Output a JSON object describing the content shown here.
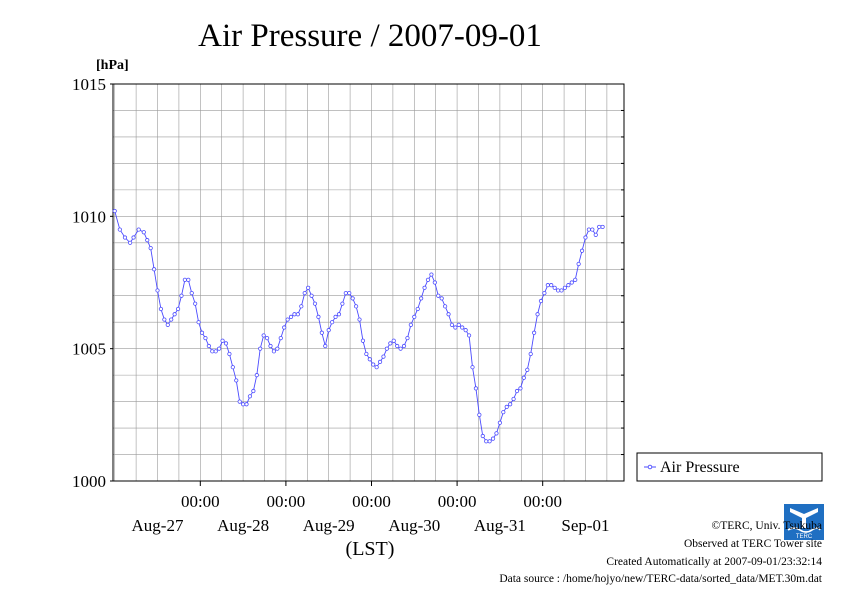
{
  "chart_data": {
    "type": "line",
    "title": "Air Pressure / 2007-09-01",
    "ylabel": "[hPa]",
    "xlabel": "(LST)",
    "ylim": [
      1000,
      1015
    ],
    "yticks": [
      "1000",
      "1005",
      "1010",
      "1015"
    ],
    "xticks": [
      {
        "time": "00:00",
        "date": "Aug-27"
      },
      {
        "time": "00:00",
        "date": "Aug-28"
      },
      {
        "time": "00:00",
        "date": "Aug-29"
      },
      {
        "time": "00:00",
        "date": "Aug-30"
      },
      {
        "time": "00:00",
        "date": "Aug-31"
      },
      {
        "time": "00:00",
        "date": "Sep-01"
      }
    ],
    "x_unit": "days since 2007-08-26 00:00",
    "xlim": [
      -0.02,
      5.95
    ],
    "grid": true,
    "legend_position": "right",
    "series": [
      {
        "name": "Air Pressure",
        "color": "#4b4bff",
        "points": [
          [
            0.0,
            1010.2
          ],
          [
            0.06,
            1009.5
          ],
          [
            0.12,
            1009.2
          ],
          [
            0.18,
            1009.0
          ],
          [
            0.22,
            1009.2
          ],
          [
            0.28,
            1009.5
          ],
          [
            0.34,
            1009.4
          ],
          [
            0.38,
            1009.1
          ],
          [
            0.42,
            1008.8
          ],
          [
            0.46,
            1008.0
          ],
          [
            0.5,
            1007.2
          ],
          [
            0.54,
            1006.5
          ],
          [
            0.58,
            1006.1
          ],
          [
            0.62,
            1005.9
          ],
          [
            0.66,
            1006.1
          ],
          [
            0.7,
            1006.3
          ],
          [
            0.74,
            1006.5
          ],
          [
            0.78,
            1007.0
          ],
          [
            0.82,
            1007.6
          ],
          [
            0.86,
            1007.6
          ],
          [
            0.9,
            1007.1
          ],
          [
            0.94,
            1006.7
          ],
          [
            0.98,
            1006.0
          ],
          [
            1.02,
            1005.6
          ],
          [
            1.06,
            1005.4
          ],
          [
            1.1,
            1005.1
          ],
          [
            1.14,
            1004.9
          ],
          [
            1.18,
            1004.9
          ],
          [
            1.22,
            1005.0
          ],
          [
            1.26,
            1005.3
          ],
          [
            1.3,
            1005.2
          ],
          [
            1.34,
            1004.8
          ],
          [
            1.38,
            1004.3
          ],
          [
            1.42,
            1003.8
          ],
          [
            1.46,
            1003.0
          ],
          [
            1.5,
            1002.9
          ],
          [
            1.54,
            1002.9
          ],
          [
            1.58,
            1003.2
          ],
          [
            1.62,
            1003.4
          ],
          [
            1.66,
            1004.0
          ],
          [
            1.7,
            1005.0
          ],
          [
            1.74,
            1005.5
          ],
          [
            1.78,
            1005.4
          ],
          [
            1.82,
            1005.1
          ],
          [
            1.86,
            1004.9
          ],
          [
            1.9,
            1005.0
          ],
          [
            1.94,
            1005.4
          ],
          [
            1.98,
            1005.8
          ],
          [
            2.02,
            1006.1
          ],
          [
            2.06,
            1006.2
          ],
          [
            2.1,
            1006.3
          ],
          [
            2.14,
            1006.3
          ],
          [
            2.18,
            1006.6
          ],
          [
            2.22,
            1007.1
          ],
          [
            2.26,
            1007.3
          ],
          [
            2.3,
            1007.0
          ],
          [
            2.34,
            1006.7
          ],
          [
            2.38,
            1006.2
          ],
          [
            2.42,
            1005.6
          ],
          [
            2.46,
            1005.1
          ],
          [
            2.5,
            1005.7
          ],
          [
            2.54,
            1006.0
          ],
          [
            2.58,
            1006.2
          ],
          [
            2.62,
            1006.3
          ],
          [
            2.66,
            1006.7
          ],
          [
            2.7,
            1007.1
          ],
          [
            2.74,
            1007.1
          ],
          [
            2.78,
            1006.9
          ],
          [
            2.82,
            1006.6
          ],
          [
            2.86,
            1006.1
          ],
          [
            2.9,
            1005.3
          ],
          [
            2.94,
            1004.8
          ],
          [
            2.98,
            1004.6
          ],
          [
            3.02,
            1004.4
          ],
          [
            3.06,
            1004.3
          ],
          [
            3.1,
            1004.5
          ],
          [
            3.14,
            1004.7
          ],
          [
            3.18,
            1005.0
          ],
          [
            3.22,
            1005.2
          ],
          [
            3.26,
            1005.3
          ],
          [
            3.3,
            1005.1
          ],
          [
            3.34,
            1005.0
          ],
          [
            3.38,
            1005.1
          ],
          [
            3.42,
            1005.4
          ],
          [
            3.46,
            1005.9
          ],
          [
            3.5,
            1006.2
          ],
          [
            3.54,
            1006.5
          ],
          [
            3.58,
            1006.9
          ],
          [
            3.62,
            1007.3
          ],
          [
            3.66,
            1007.6
          ],
          [
            3.7,
            1007.8
          ],
          [
            3.74,
            1007.5
          ],
          [
            3.78,
            1007.0
          ],
          [
            3.82,
            1006.9
          ],
          [
            3.86,
            1006.6
          ],
          [
            3.9,
            1006.3
          ],
          [
            3.94,
            1005.9
          ],
          [
            3.98,
            1005.8
          ],
          [
            4.02,
            1005.9
          ],
          [
            4.06,
            1005.8
          ],
          [
            4.1,
            1005.7
          ],
          [
            4.14,
            1005.5
          ],
          [
            4.18,
            1004.3
          ],
          [
            4.22,
            1003.5
          ],
          [
            4.26,
            1002.5
          ],
          [
            4.3,
            1001.7
          ],
          [
            4.34,
            1001.5
          ],
          [
            4.38,
            1001.5
          ],
          [
            4.42,
            1001.6
          ],
          [
            4.46,
            1001.8
          ],
          [
            4.5,
            1002.2
          ],
          [
            4.54,
            1002.6
          ],
          [
            4.58,
            1002.8
          ],
          [
            4.62,
            1002.9
          ],
          [
            4.66,
            1003.1
          ],
          [
            4.7,
            1003.4
          ],
          [
            4.74,
            1003.5
          ],
          [
            4.78,
            1003.9
          ],
          [
            4.82,
            1004.2
          ],
          [
            4.86,
            1004.8
          ],
          [
            4.9,
            1005.6
          ],
          [
            4.94,
            1006.3
          ],
          [
            4.98,
            1006.8
          ],
          [
            5.02,
            1007.1
          ],
          [
            5.06,
            1007.4
          ],
          [
            5.1,
            1007.4
          ],
          [
            5.14,
            1007.3
          ],
          [
            5.18,
            1007.2
          ],
          [
            5.22,
            1007.2
          ],
          [
            5.26,
            1007.3
          ],
          [
            5.3,
            1007.4
          ],
          [
            5.34,
            1007.5
          ],
          [
            5.38,
            1007.6
          ],
          [
            5.42,
            1008.2
          ],
          [
            5.46,
            1008.7
          ],
          [
            5.5,
            1009.2
          ],
          [
            5.54,
            1009.5
          ],
          [
            5.58,
            1009.5
          ],
          [
            5.62,
            1009.3
          ],
          [
            5.66,
            1009.6
          ],
          [
            5.7,
            1009.6
          ]
        ]
      }
    ]
  },
  "footer": {
    "copyright": "©TERC, Univ. Tsukuba",
    "observed": "Observed at TERC Tower site",
    "created": "Created Automatically at 2007-09-01/23:32:14",
    "source": "Data source : /home/hojyo/new/TERC-data/sorted_data/MET.30m.dat"
  },
  "logo": {
    "text": "TERC",
    "color": "#1f6fc2"
  }
}
